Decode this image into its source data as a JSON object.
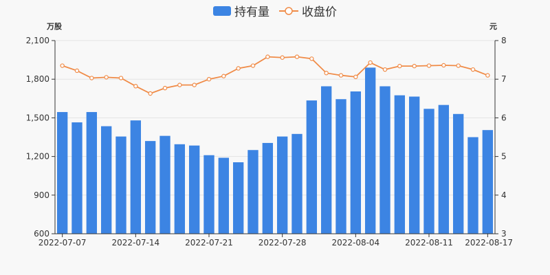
{
  "chart_data": {
    "type": "bar+line",
    "legend": {
      "position": "top-center"
    },
    "left_unit": "万股",
    "right_unit": "元",
    "x_tick_labels": [
      "2022-07-07",
      "2022-07-14",
      "2022-07-21",
      "2022-07-28",
      "2022-08-04",
      "2022-08-11",
      "2022-08-17"
    ],
    "y_left": {
      "min": 600,
      "max": 2100,
      "ticks": [
        600,
        900,
        1200,
        1500,
        1800,
        2100
      ],
      "tick_labels": [
        "600",
        "900",
        "1,200",
        "1,500",
        "1,800",
        "2,100"
      ]
    },
    "y_right": {
      "min": 3,
      "max": 8,
      "ticks": [
        3,
        4,
        5,
        6,
        7,
        8
      ],
      "tick_labels": [
        "3",
        "4",
        "5",
        "6",
        "7",
        "8"
      ]
    },
    "categories": [
      "2022-07-07",
      "2022-07-08",
      "2022-07-11",
      "2022-07-12",
      "2022-07-13",
      "2022-07-14",
      "2022-07-15",
      "2022-07-18",
      "2022-07-19",
      "2022-07-20",
      "2022-07-21",
      "2022-07-22",
      "2022-07-25",
      "2022-07-26",
      "2022-07-27",
      "2022-07-28",
      "2022-07-29",
      "2022-08-01",
      "2022-08-02",
      "2022-08-03",
      "2022-08-04",
      "2022-08-05",
      "2022-08-08",
      "2022-08-09",
      "2022-08-10",
      "2022-08-11",
      "2022-08-12",
      "2022-08-15",
      "2022-08-16",
      "2022-08-17"
    ],
    "series": [
      {
        "name": "持有量",
        "type": "bar",
        "axis": "left",
        "color": "#3c84e3",
        "values": [
          1545,
          1465,
          1545,
          1435,
          1355,
          1480,
          1320,
          1360,
          1295,
          1285,
          1210,
          1190,
          1155,
          1250,
          1305,
          1355,
          1375,
          1635,
          1745,
          1645,
          1705,
          1890,
          1745,
          1675,
          1665,
          1570,
          1600,
          1530,
          1350,
          1405
        ]
      },
      {
        "name": "收盘价",
        "type": "line",
        "axis": "right",
        "color": "#f08b47",
        "values": [
          7.35,
          7.22,
          7.03,
          7.05,
          7.03,
          6.82,
          6.63,
          6.77,
          6.85,
          6.85,
          7.0,
          7.08,
          7.28,
          7.35,
          7.58,
          7.56,
          7.58,
          7.53,
          7.16,
          7.1,
          7.06,
          7.43,
          7.25,
          7.34,
          7.34,
          7.35,
          7.36,
          7.35,
          7.25,
          7.1
        ]
      }
    ]
  }
}
